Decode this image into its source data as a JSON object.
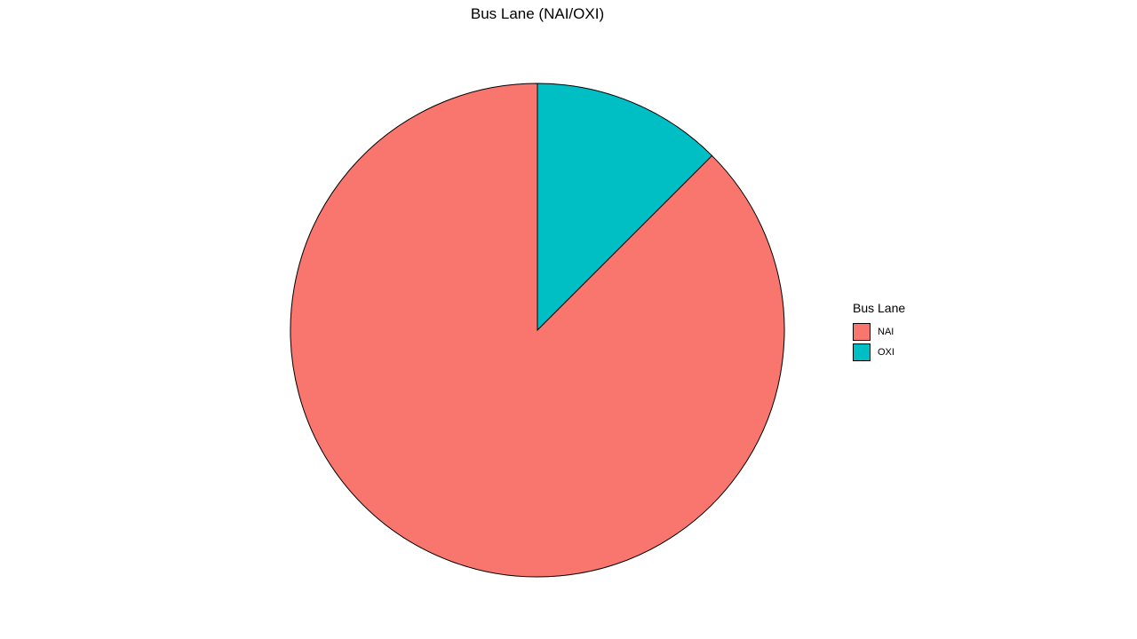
{
  "chart_data": {
    "type": "pie",
    "title": "Bus Lane (NAI/OXI)",
    "categories": [
      "NAI",
      "OXI"
    ],
    "values": [
      87.5,
      12.5
    ],
    "colors": [
      "#F8766D",
      "#00BFC4"
    ],
    "legend": {
      "title": "Bus Lane",
      "placement": "right"
    },
    "grid": false
  }
}
